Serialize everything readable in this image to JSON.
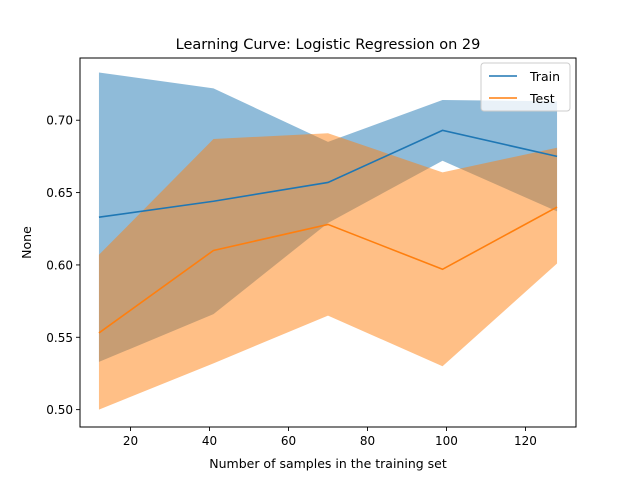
{
  "chart_data": {
    "type": "line",
    "title": "Learning Curve: Logistic Regression on 29",
    "xlabel": "Number of samples in the training set",
    "ylabel": "None",
    "xlim": [
      7.2,
      132.8
    ],
    "ylim": [
      0.488,
      0.743
    ],
    "xticks": [
      20,
      40,
      60,
      80,
      100,
      120
    ],
    "yticks": [
      0.5,
      0.55,
      0.6,
      0.65,
      0.7
    ],
    "ytick_labels": [
      "0.50",
      "0.55",
      "0.60",
      "0.65",
      "0.70"
    ],
    "grid": false,
    "legend_position": "upper right",
    "x": [
      12,
      41,
      70,
      99,
      128
    ],
    "series": [
      {
        "name": "Train",
        "color": "#1f77b4",
        "band_opacity": 0.5,
        "values": [
          0.633,
          0.644,
          0.657,
          0.693,
          0.675
        ],
        "lower": [
          0.533,
          0.566,
          0.629,
          0.672,
          0.637
        ],
        "upper": [
          0.733,
          0.722,
          0.685,
          0.714,
          0.713
        ]
      },
      {
        "name": "Test",
        "color": "#ff7f0e",
        "band_opacity": 0.5,
        "values": [
          0.553,
          0.61,
          0.628,
          0.597,
          0.64
        ],
        "lower": [
          0.5,
          0.532,
          0.565,
          0.53,
          0.601
        ],
        "upper": [
          0.607,
          0.687,
          0.691,
          0.664,
          0.681
        ]
      }
    ]
  }
}
